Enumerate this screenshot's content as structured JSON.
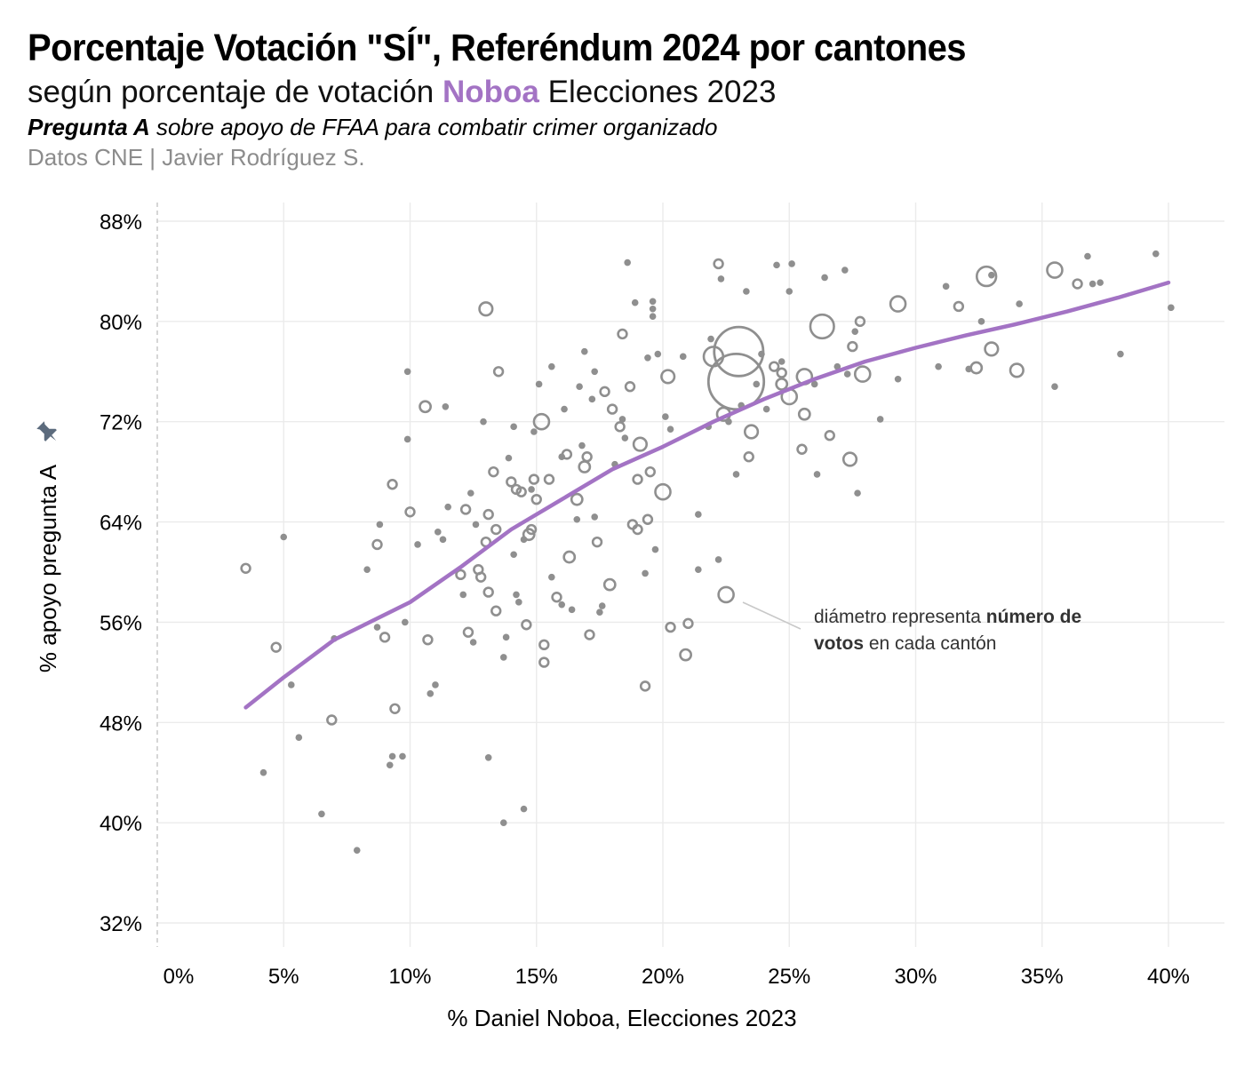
{
  "header": {
    "title": "Porcentaje Votación \"SÍ\", Referéndum 2024 por cantones",
    "subtitle_pre": "según porcentaje de votación ",
    "subtitle_highlight": "Noboa",
    "subtitle_post": " Elecciones 2023",
    "question_bold": "Pregunta A",
    "question_rest": " sobre apoyo de FFAA para combatir crimer organizado",
    "source": "Datos CNE | Javier Rodríguez S."
  },
  "annotation": {
    "line1_pre": "diámetro representa ",
    "line1_bold": "número de",
    "line2_bold": "votos",
    "line2_rest": " en cada cantón"
  },
  "colors": {
    "accent": "#a373c4",
    "points": "#8f8f8f",
    "grid": "#ebebeb",
    "subtle_text": "#8c8c8c",
    "pin": "#5c6b7d"
  },
  "icons": {
    "axis_marker": "pin-icon"
  },
  "chart_data": {
    "type": "scatter",
    "xlabel": "% Daniel Noboa, Elecciones 2023",
    "ylabel": "% apoyo pregunta A",
    "xlim": [
      0,
      40
    ],
    "ylim": [
      32,
      88
    ],
    "x_ticks": [
      0,
      5,
      10,
      15,
      20,
      25,
      30,
      35,
      40
    ],
    "x_tick_labels": [
      "0%",
      "5%",
      "10%",
      "15%",
      "20%",
      "25%",
      "30%",
      "35%",
      "40%"
    ],
    "y_ticks": [
      32,
      40,
      48,
      56,
      64,
      72,
      80,
      88
    ],
    "y_tick_labels": [
      "32%",
      "40%",
      "48%",
      "56%",
      "64%",
      "72%",
      "80%",
      "88%"
    ],
    "grid": true,
    "size_encoding": "número de votos en cada cantón (relative scale)",
    "points": [
      [
        3.5,
        60.3,
        3
      ],
      [
        4.2,
        44.0,
        1
      ],
      [
        4.7,
        54.0,
        3
      ],
      [
        5.0,
        62.8,
        1
      ],
      [
        5.3,
        51.0,
        1
      ],
      [
        5.6,
        46.8,
        1
      ],
      [
        6.5,
        40.7,
        1
      ],
      [
        6.9,
        48.2,
        3
      ],
      [
        7.0,
        54.7,
        1
      ],
      [
        7.9,
        37.8,
        1
      ],
      [
        8.3,
        60.2,
        1
      ],
      [
        8.7,
        62.2,
        3
      ],
      [
        8.8,
        63.8,
        1
      ],
      [
        8.7,
        55.6,
        1
      ],
      [
        9.0,
        54.8,
        3
      ],
      [
        9.2,
        44.6,
        1
      ],
      [
        9.3,
        45.3,
        1
      ],
      [
        9.4,
        49.1,
        3
      ],
      [
        9.3,
        67.0,
        3
      ],
      [
        9.7,
        45.3,
        1
      ],
      [
        9.8,
        56.0,
        1
      ],
      [
        9.9,
        70.6,
        1
      ],
      [
        9.9,
        76.0,
        1
      ],
      [
        10.0,
        64.8,
        3
      ],
      [
        10.3,
        62.2,
        1
      ],
      [
        10.6,
        73.2,
        4
      ],
      [
        10.7,
        54.6,
        3
      ],
      [
        10.8,
        50.3,
        1
      ],
      [
        11.0,
        51.0,
        1
      ],
      [
        11.1,
        63.2,
        1
      ],
      [
        11.3,
        62.6,
        1
      ],
      [
        11.4,
        73.2,
        1
      ],
      [
        11.5,
        65.2,
        1
      ],
      [
        12.0,
        59.8,
        3
      ],
      [
        12.1,
        58.2,
        1
      ],
      [
        12.2,
        65.0,
        3
      ],
      [
        12.3,
        55.2,
        3
      ],
      [
        12.4,
        66.3,
        1
      ],
      [
        12.5,
        54.4,
        1
      ],
      [
        12.6,
        63.8,
        1
      ],
      [
        12.7,
        60.2,
        3
      ],
      [
        12.8,
        59.6,
        3
      ],
      [
        12.9,
        72.0,
        1
      ],
      [
        13.0,
        62.4,
        3
      ],
      [
        13.0,
        81.0,
        5
      ],
      [
        13.1,
        58.4,
        3
      ],
      [
        13.1,
        64.6,
        3
      ],
      [
        13.1,
        45.2,
        1
      ],
      [
        13.3,
        68.0,
        3
      ],
      [
        13.4,
        56.9,
        3
      ],
      [
        13.4,
        63.4,
        3
      ],
      [
        13.5,
        76.0,
        3
      ],
      [
        13.7,
        53.2,
        1
      ],
      [
        13.8,
        54.8,
        1
      ],
      [
        13.7,
        40.0,
        1
      ],
      [
        13.9,
        69.1,
        1
      ],
      [
        14.0,
        67.2,
        3
      ],
      [
        14.1,
        71.6,
        1
      ],
      [
        14.2,
        66.6,
        3
      ],
      [
        14.1,
        61.4,
        1
      ],
      [
        14.2,
        58.2,
        1
      ],
      [
        14.3,
        57.6,
        1
      ],
      [
        14.4,
        66.4,
        3
      ],
      [
        14.5,
        41.1,
        1
      ],
      [
        14.5,
        62.6,
        1
      ],
      [
        14.6,
        55.8,
        3
      ],
      [
        14.7,
        63.0,
        4
      ],
      [
        14.8,
        63.4,
        3
      ],
      [
        14.8,
        66.6,
        1
      ],
      [
        14.9,
        71.2,
        1
      ],
      [
        14.9,
        67.4,
        3
      ],
      [
        15.1,
        75.0,
        1
      ],
      [
        15.0,
        65.8,
        3
      ],
      [
        15.2,
        72.0,
        6
      ],
      [
        15.3,
        52.8,
        3
      ],
      [
        15.3,
        54.2,
        3
      ],
      [
        15.5,
        67.4,
        3
      ],
      [
        15.6,
        76.4,
        1
      ],
      [
        15.6,
        59.6,
        1
      ],
      [
        15.8,
        58.0,
        3
      ],
      [
        16.0,
        57.4,
        1
      ],
      [
        16.0,
        69.2,
        1
      ],
      [
        16.1,
        73.0,
        1
      ],
      [
        16.2,
        69.4,
        3
      ],
      [
        16.3,
        61.2,
        4
      ],
      [
        16.4,
        57.0,
        1
      ],
      [
        16.6,
        64.2,
        1
      ],
      [
        16.6,
        65.8,
        4
      ],
      [
        16.7,
        74.8,
        1
      ],
      [
        16.8,
        70.1,
        1
      ],
      [
        16.9,
        68.4,
        4
      ],
      [
        16.9,
        77.6,
        1
      ],
      [
        17.0,
        69.2,
        3
      ],
      [
        17.1,
        55.0,
        3
      ],
      [
        17.2,
        73.8,
        1
      ],
      [
        17.3,
        76.0,
        1
      ],
      [
        17.3,
        64.4,
        1
      ],
      [
        17.4,
        62.4,
        3
      ],
      [
        17.5,
        56.8,
        1
      ],
      [
        17.6,
        57.3,
        1
      ],
      [
        17.7,
        74.4,
        3
      ],
      [
        17.9,
        59.0,
        4
      ],
      [
        18.0,
        73.0,
        3
      ],
      [
        18.1,
        68.6,
        1
      ],
      [
        18.3,
        71.6,
        3
      ],
      [
        18.4,
        72.2,
        1
      ],
      [
        18.4,
        79.0,
        3
      ],
      [
        18.6,
        84.7,
        1
      ],
      [
        18.5,
        70.7,
        1
      ],
      [
        18.7,
        74.8,
        3
      ],
      [
        18.8,
        63.8,
        3
      ],
      [
        18.9,
        81.5,
        1
      ],
      [
        19.0,
        63.4,
        3
      ],
      [
        19.0,
        67.4,
        3
      ],
      [
        19.1,
        70.2,
        5
      ],
      [
        19.3,
        50.9,
        3
      ],
      [
        19.3,
        59.9,
        1
      ],
      [
        19.4,
        64.2,
        3
      ],
      [
        19.4,
        77.1,
        1
      ],
      [
        19.6,
        81.6,
        1
      ],
      [
        19.6,
        81.0,
        1
      ],
      [
        19.6,
        80.4,
        1
      ],
      [
        19.5,
        68.0,
        3
      ],
      [
        19.7,
        61.8,
        1
      ],
      [
        19.8,
        77.4,
        1
      ],
      [
        20.1,
        72.4,
        1
      ],
      [
        20.0,
        66.4,
        6
      ],
      [
        20.2,
        75.6,
        5
      ],
      [
        20.3,
        71.4,
        1
      ],
      [
        20.3,
        55.6,
        3
      ],
      [
        20.8,
        77.2,
        1
      ],
      [
        20.9,
        53.4,
        4
      ],
      [
        21.0,
        55.9,
        3
      ],
      [
        21.4,
        64.6,
        1
      ],
      [
        21.4,
        60.2,
        1
      ],
      [
        21.8,
        71.6,
        1
      ],
      [
        21.9,
        78.6,
        1
      ],
      [
        22.0,
        77.2,
        8
      ],
      [
        22.2,
        84.6,
        3
      ],
      [
        22.2,
        61.0,
        1
      ],
      [
        22.3,
        83.4,
        1
      ],
      [
        22.4,
        72.6,
        5
      ],
      [
        22.5,
        58.2,
        6
      ],
      [
        22.6,
        72.0,
        1
      ],
      [
        22.9,
        67.8,
        1
      ],
      [
        23.0,
        77.6,
        22
      ],
      [
        22.9,
        75.2,
        25
      ],
      [
        23.1,
        73.3,
        1
      ],
      [
        23.3,
        82.4,
        1
      ],
      [
        23.4,
        69.2,
        3
      ],
      [
        23.5,
        71.2,
        5
      ],
      [
        23.7,
        75.0,
        1
      ],
      [
        23.9,
        77.4,
        1
      ],
      [
        24.1,
        73.0,
        1
      ],
      [
        24.4,
        76.4,
        3
      ],
      [
        24.5,
        84.5,
        1
      ],
      [
        24.7,
        76.8,
        1
      ],
      [
        24.7,
        75.0,
        4
      ],
      [
        24.7,
        75.9,
        3
      ],
      [
        25.0,
        82.4,
        1
      ],
      [
        25.0,
        74.0,
        6
      ],
      [
        25.1,
        84.6,
        1
      ],
      [
        25.5,
        69.8,
        3
      ],
      [
        25.6,
        75.6,
        6
      ],
      [
        25.6,
        72.6,
        4
      ],
      [
        26.0,
        75.0,
        1
      ],
      [
        26.1,
        67.8,
        1
      ],
      [
        26.3,
        79.6,
        10
      ],
      [
        26.4,
        83.5,
        1
      ],
      [
        26.6,
        70.9,
        3
      ],
      [
        26.9,
        76.4,
        1
      ],
      [
        27.2,
        84.1,
        1
      ],
      [
        27.3,
        75.8,
        1
      ],
      [
        27.4,
        69.0,
        5
      ],
      [
        27.5,
        78.0,
        3
      ],
      [
        27.6,
        79.2,
        1
      ],
      [
        27.7,
        66.3,
        1
      ],
      [
        27.8,
        80.0,
        3
      ],
      [
        27.9,
        75.8,
        6
      ],
      [
        28.6,
        72.2,
        1
      ],
      [
        29.3,
        81.4,
        6
      ],
      [
        29.3,
        75.4,
        1
      ],
      [
        30.9,
        76.4,
        1
      ],
      [
        31.2,
        82.8,
        1
      ],
      [
        31.7,
        81.2,
        3
      ],
      [
        32.1,
        76.2,
        1
      ],
      [
        32.4,
        76.3,
        4
      ],
      [
        32.6,
        80.0,
        1
      ],
      [
        32.8,
        83.6,
        8
      ],
      [
        33.0,
        83.7,
        1
      ],
      [
        33.0,
        77.8,
        5
      ],
      [
        34.0,
        76.1,
        5
      ],
      [
        34.1,
        81.4,
        1
      ],
      [
        35.5,
        84.1,
        6
      ],
      [
        35.5,
        74.8,
        1
      ],
      [
        36.4,
        83.0,
        3
      ],
      [
        36.8,
        85.2,
        1
      ],
      [
        37.0,
        83.0,
        1
      ],
      [
        37.3,
        83.1,
        1
      ],
      [
        38.1,
        77.4,
        1
      ],
      [
        39.5,
        85.4,
        1
      ],
      [
        40.1,
        81.1,
        1
      ]
    ],
    "trend": [
      [
        3.5,
        49.2
      ],
      [
        5,
        51.6
      ],
      [
        7,
        54.6
      ],
      [
        10,
        57.6
      ],
      [
        12,
        60.4
      ],
      [
        14,
        63.4
      ],
      [
        16,
        65.8
      ],
      [
        18,
        68.2
      ],
      [
        20,
        70.0
      ],
      [
        22,
        72.0
      ],
      [
        24,
        73.8
      ],
      [
        26,
        75.4
      ],
      [
        28,
        76.8
      ],
      [
        30,
        77.9
      ],
      [
        32,
        78.9
      ],
      [
        34,
        79.8
      ],
      [
        36,
        80.8
      ],
      [
        38,
        81.9
      ],
      [
        40,
        83.1
      ]
    ]
  }
}
